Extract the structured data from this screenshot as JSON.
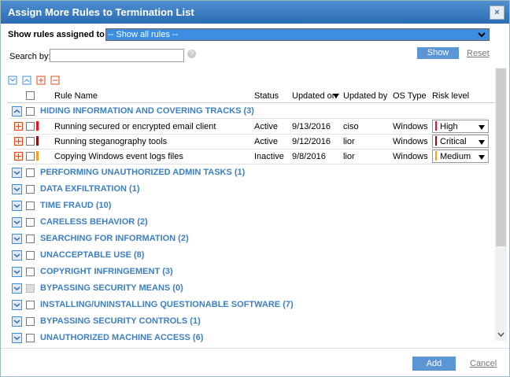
{
  "dialog": {
    "title": "Assign More Rules to Termination List"
  },
  "filter": {
    "label": "Show rules assigned to",
    "selected": "-- Show all rules --"
  },
  "search": {
    "label": "Search by:",
    "button": "Show",
    "reset": "Reset"
  },
  "table": {
    "columns": [
      "Rule Name",
      "Status",
      "Updated on",
      "Updated by",
      "OS Type",
      "Risk level"
    ],
    "groups": [
      {
        "name": "HIDING INFORMATION AND COVERING TRACKS (3)",
        "expanded": true,
        "rules": [
          {
            "name": "Running secured or encrypted email client",
            "status": "Active",
            "updated_on": "9/13/2016",
            "updated_by": "ciso",
            "os": "Windows",
            "risk": "High",
            "risk_color": "#e8141c"
          },
          {
            "name": "Running steganography tools",
            "status": "Active",
            "updated_on": "9/12/2016",
            "updated_by": "lior",
            "os": "Windows",
            "risk": "Critical",
            "risk_color": "#9b0a0a"
          },
          {
            "name": "Copying Windows event logs files",
            "status": "Inactive",
            "updated_on": "9/8/2016",
            "updated_by": "lior",
            "os": "Windows",
            "risk": "Medium",
            "risk_color": "#f5a31a"
          }
        ]
      },
      {
        "name": "PERFORMING UNAUTHORIZED ADMIN TASKS (1)"
      },
      {
        "name": "DATA EXFILTRATION (1)"
      },
      {
        "name": "TIME FRAUD (10)"
      },
      {
        "name": "CARELESS BEHAVIOR (2)"
      },
      {
        "name": "SEARCHING FOR INFORMATION (2)"
      },
      {
        "name": "UNACCEPTABLE USE (8)"
      },
      {
        "name": "COPYRIGHT INFRINGEMENT (3)"
      },
      {
        "name": "BYPASSING SECURITY MEANS (0)",
        "disabled": true
      },
      {
        "name": "INSTALLING/UNINSTALLING QUESTIONABLE SOFTWARE (7)"
      },
      {
        "name": "BYPASSING SECURITY CONTROLS (1)"
      },
      {
        "name": "UNAUTHORIZED MACHINE ACCESS (6)"
      }
    ]
  },
  "footer": {
    "add": "Add",
    "cancel": "Cancel"
  }
}
